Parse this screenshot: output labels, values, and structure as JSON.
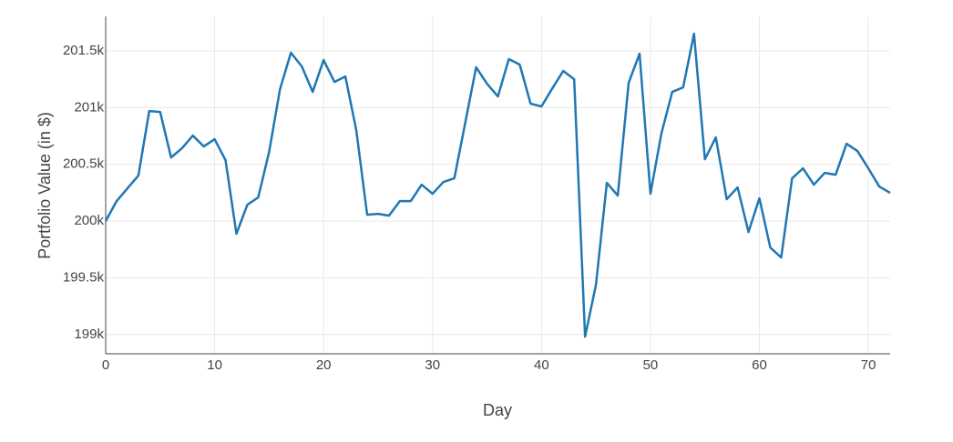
{
  "chart_data": {
    "type": "line",
    "x_label": "Day",
    "y_label": "Portfolio Value (in $)",
    "x": [
      0,
      1,
      2,
      3,
      4,
      5,
      6,
      7,
      8,
      9,
      10,
      11,
      12,
      13,
      14,
      15,
      16,
      17,
      18,
      19,
      20,
      21,
      22,
      23,
      24,
      25,
      26,
      27,
      28,
      29,
      30,
      31,
      32,
      33,
      34,
      35,
      36,
      37,
      38,
      39,
      40,
      41,
      42,
      43,
      44,
      45,
      46,
      47,
      48,
      49,
      50,
      51,
      52,
      53,
      54,
      55,
      56,
      57,
      58,
      59,
      60,
      61,
      62,
      63,
      64,
      65,
      66,
      67,
      68,
      69,
      70,
      71,
      72
    ],
    "series": [
      {
        "name": "Portfolio",
        "color": "#1f77b4",
        "values": [
          200000,
          200176,
          200289,
          200401,
          200970,
          200962,
          200561,
          200642,
          200754,
          200658,
          200722,
          200537,
          199888,
          200144,
          200209,
          200610,
          201163,
          201484,
          201364,
          201139,
          201420,
          201227,
          201275,
          200802,
          200056,
          200064,
          200048,
          200176,
          200176,
          200321,
          200241,
          200345,
          200377,
          200866,
          201356,
          201211,
          201099,
          201428,
          201380,
          201035,
          201011,
          201171,
          201324,
          201251,
          198981,
          199439,
          200337,
          200225,
          201219,
          201476,
          200241,
          200770,
          201139,
          201179,
          201652,
          200545,
          200738,
          200193,
          200297,
          199904,
          200201,
          199767,
          199679,
          200377,
          200465,
          200321,
          200425,
          200409,
          200682,
          200618,
          200465,
          200305,
          200249
        ]
      }
    ],
    "xlim": [
      0,
      72
    ],
    "ylim": [
      198830,
      201805
    ],
    "xticks": [
      0,
      10,
      20,
      30,
      40,
      50,
      60,
      70
    ],
    "yticks": [
      {
        "value": 199000,
        "label": "199k"
      },
      {
        "value": 199500,
        "label": "199.5k"
      },
      {
        "value": 200000,
        "label": "200k"
      },
      {
        "value": 200500,
        "label": "200.5k"
      },
      {
        "value": 201000,
        "label": "201k"
      },
      {
        "value": 201500,
        "label": "201.5k"
      }
    ],
    "grid": true
  }
}
